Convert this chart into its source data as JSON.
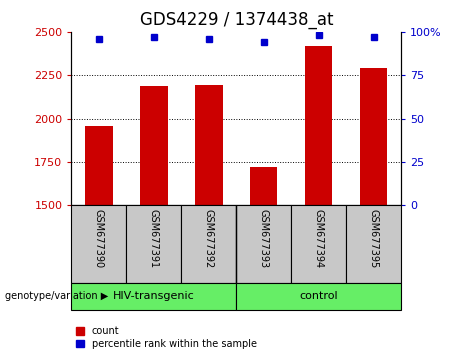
{
  "title": "GDS4229 / 1374438_at",
  "samples": [
    "GSM677390",
    "GSM677391",
    "GSM677392",
    "GSM677393",
    "GSM677394",
    "GSM677395"
  ],
  "counts": [
    1960,
    2190,
    2195,
    1720,
    2420,
    2290
  ],
  "percentiles": [
    96,
    97,
    96,
    94,
    98,
    97
  ],
  "groups": [
    {
      "label": "HIV-transgenic",
      "n": 3,
      "color": "#66EE66"
    },
    {
      "label": "control",
      "n": 3,
      "color": "#66EE66"
    }
  ],
  "ylim_left": [
    1500,
    2500
  ],
  "ylim_right": [
    0,
    100
  ],
  "yticks_left": [
    1500,
    1750,
    2000,
    2250,
    2500
  ],
  "yticks_right": [
    0,
    25,
    50,
    75,
    100
  ],
  "bar_color": "#CC0000",
  "dot_color": "#0000CC",
  "bg_color": "#FFFFFF",
  "xticklabel_bg": "#C8C8C8",
  "group_label": "genotype/variation",
  "legend_count": "count",
  "legend_percentile": "percentile rank within the sample",
  "title_fontsize": 12,
  "tick_fontsize": 8,
  "label_fontsize": 8
}
